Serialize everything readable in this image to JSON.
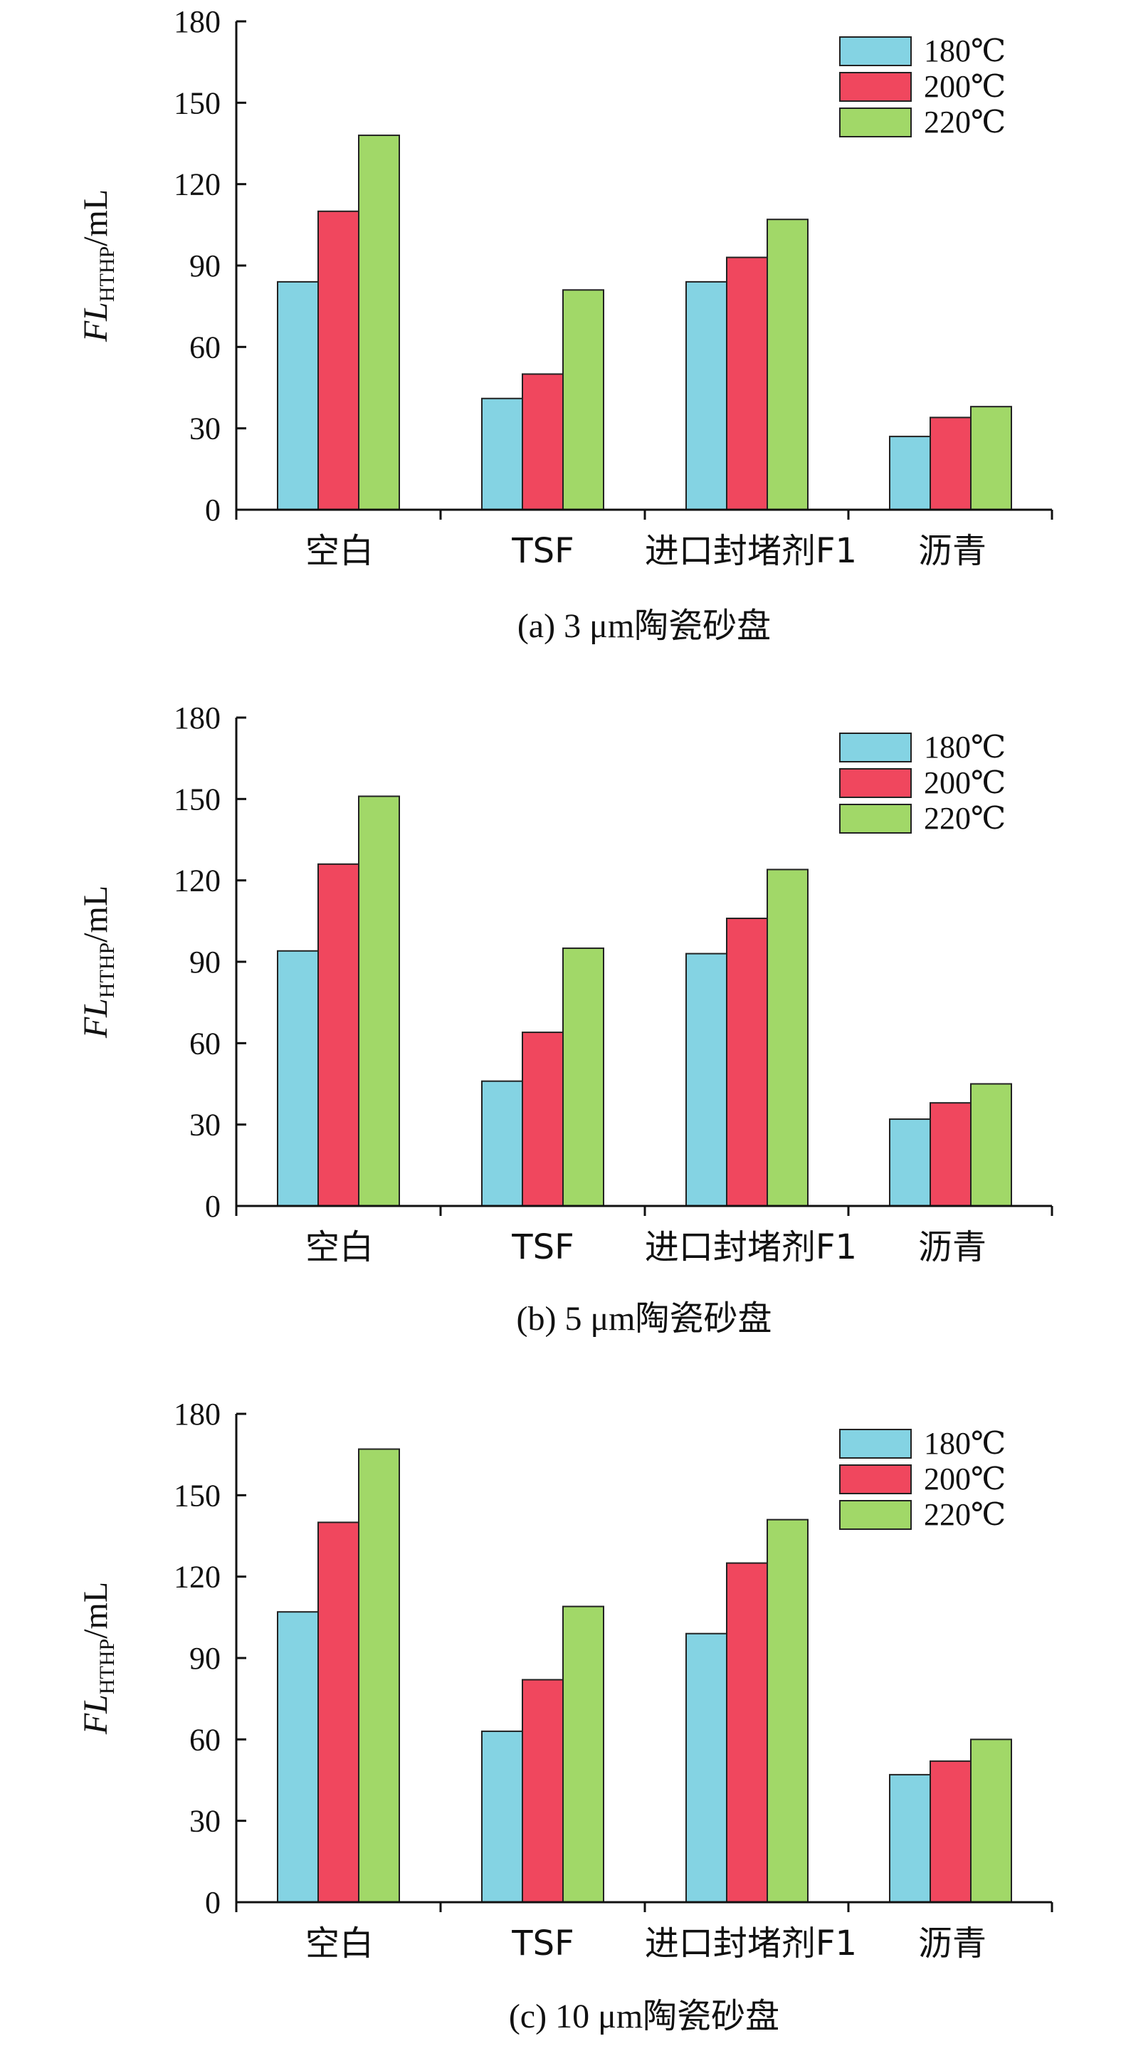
{
  "colors": {
    "s180": "#84d3e3",
    "s200": "#f0475e",
    "s220": "#a1d868"
  },
  "chart_data": [
    {
      "type": "bar",
      "caption": "(a) 3 μm陶瓷砂盘",
      "ylabel": {
        "main": "FL",
        "sub": "HTHP",
        "unit": "/mL"
      },
      "ylim": [
        0,
        180
      ],
      "yticks": [
        "0",
        "30",
        "60",
        "90",
        "120",
        "150",
        "180"
      ],
      "categories": [
        "空白",
        "TSF",
        "进口封堵剂F1",
        "沥青"
      ],
      "legend_position": "top-right",
      "series": [
        {
          "name": "180℃",
          "color_key": "s180",
          "values": [
            84,
            41,
            84,
            27
          ]
        },
        {
          "name": "200℃",
          "color_key": "s200",
          "values": [
            110,
            50,
            93,
            34
          ]
        },
        {
          "name": "220℃",
          "color_key": "s220",
          "values": [
            138,
            81,
            107,
            38
          ]
        }
      ]
    },
    {
      "type": "bar",
      "caption": "(b) 5 μm陶瓷砂盘",
      "ylabel": {
        "main": "FL",
        "sub": "HTHP",
        "unit": "/mL"
      },
      "ylim": [
        0,
        180
      ],
      "yticks": [
        "0",
        "30",
        "60",
        "90",
        "120",
        "150",
        "180"
      ],
      "categories": [
        "空白",
        "TSF",
        "进口封堵剂F1",
        "沥青"
      ],
      "legend_position": "top-right",
      "series": [
        {
          "name": "180℃",
          "color_key": "s180",
          "values": [
            94,
            46,
            93,
            32
          ]
        },
        {
          "name": "200℃",
          "color_key": "s200",
          "values": [
            126,
            64,
            106,
            38
          ]
        },
        {
          "name": "220℃",
          "color_key": "s220",
          "values": [
            151,
            95,
            124,
            45
          ]
        }
      ]
    },
    {
      "type": "bar",
      "caption": "(c) 10 μm陶瓷砂盘",
      "ylabel": {
        "main": "FL",
        "sub": "HTHP",
        "unit": "/mL"
      },
      "ylim": [
        0,
        180
      ],
      "yticks": [
        "0",
        "30",
        "60",
        "90",
        "120",
        "150",
        "180"
      ],
      "categories": [
        "空白",
        "TSF",
        "进口封堵剂F1",
        "沥青"
      ],
      "legend_position": "top-right",
      "series": [
        {
          "name": "180℃",
          "color_key": "s180",
          "values": [
            107,
            63,
            99,
            47
          ]
        },
        {
          "name": "200℃",
          "color_key": "s200",
          "values": [
            140,
            82,
            125,
            52
          ]
        },
        {
          "name": "220℃",
          "color_key": "s220",
          "values": [
            167,
            109,
            141,
            60
          ]
        }
      ]
    }
  ]
}
